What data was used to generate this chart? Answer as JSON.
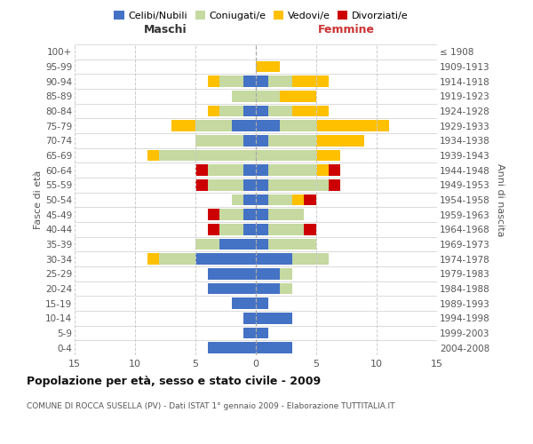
{
  "age_groups": [
    "0-4",
    "5-9",
    "10-14",
    "15-19",
    "20-24",
    "25-29",
    "30-34",
    "35-39",
    "40-44",
    "45-49",
    "50-54",
    "55-59",
    "60-64",
    "65-69",
    "70-74",
    "75-79",
    "80-84",
    "85-89",
    "90-94",
    "95-99",
    "100+"
  ],
  "birth_years": [
    "2004-2008",
    "1999-2003",
    "1994-1998",
    "1989-1993",
    "1984-1988",
    "1979-1983",
    "1974-1978",
    "1969-1973",
    "1964-1968",
    "1959-1963",
    "1954-1958",
    "1949-1953",
    "1944-1948",
    "1939-1943",
    "1934-1938",
    "1929-1933",
    "1924-1928",
    "1919-1923",
    "1914-1918",
    "1909-1913",
    "≤ 1908"
  ],
  "colors": {
    "celibi": "#4472c4",
    "coniugati": "#c5d9a0",
    "vedovi": "#ffc000",
    "divorziati": "#cc0000"
  },
  "maschi": {
    "celibi": [
      4,
      1,
      1,
      2,
      4,
      4,
      5,
      3,
      1,
      1,
      1,
      1,
      1,
      0,
      1,
      2,
      1,
      0,
      1,
      0,
      0
    ],
    "coniugati": [
      0,
      0,
      0,
      0,
      0,
      0,
      3,
      2,
      2,
      2,
      1,
      3,
      3,
      8,
      4,
      3,
      2,
      2,
      2,
      0,
      0
    ],
    "vedovi": [
      0,
      0,
      0,
      0,
      0,
      0,
      1,
      0,
      0,
      0,
      0,
      0,
      0,
      1,
      0,
      2,
      1,
      0,
      1,
      0,
      0
    ],
    "divorziati": [
      0,
      0,
      0,
      0,
      0,
      0,
      0,
      0,
      1,
      1,
      0,
      1,
      1,
      0,
      0,
      0,
      0,
      0,
      0,
      0,
      0
    ]
  },
  "femmine": {
    "celibi": [
      3,
      1,
      3,
      1,
      2,
      2,
      3,
      1,
      1,
      1,
      1,
      1,
      1,
      0,
      1,
      2,
      1,
      0,
      1,
      0,
      0
    ],
    "coniugati": [
      0,
      0,
      0,
      0,
      1,
      1,
      3,
      4,
      3,
      3,
      2,
      5,
      4,
      5,
      4,
      3,
      2,
      2,
      2,
      0,
      0
    ],
    "vedovi": [
      0,
      0,
      0,
      0,
      0,
      0,
      0,
      0,
      0,
      0,
      1,
      0,
      1,
      2,
      4,
      6,
      3,
      3,
      3,
      2,
      0
    ],
    "divorziati": [
      0,
      0,
      0,
      0,
      0,
      0,
      0,
      0,
      1,
      0,
      1,
      1,
      1,
      0,
      0,
      0,
      0,
      0,
      0,
      0,
      0
    ]
  },
  "xlim": 15,
  "title": "Popolazione per età, sesso e stato civile - 2009",
  "subtitle": "COMUNE DI ROCCA SUSELLA (PV) - Dati ISTAT 1° gennaio 2009 - Elaborazione TUTTITALIA.IT",
  "ylabel_left": "Fasce di età",
  "ylabel_right": "Anni di nascita",
  "xlabel_maschi": "Maschi",
  "xlabel_femmine": "Femmine",
  "legend_labels": [
    "Celibi/Nubili",
    "Coniugati/e",
    "Vedovi/e",
    "Divorziati/e"
  ],
  "grid_color": "#cccccc",
  "xticks": [
    -15,
    -10,
    -5,
    0,
    5,
    10,
    15
  ]
}
